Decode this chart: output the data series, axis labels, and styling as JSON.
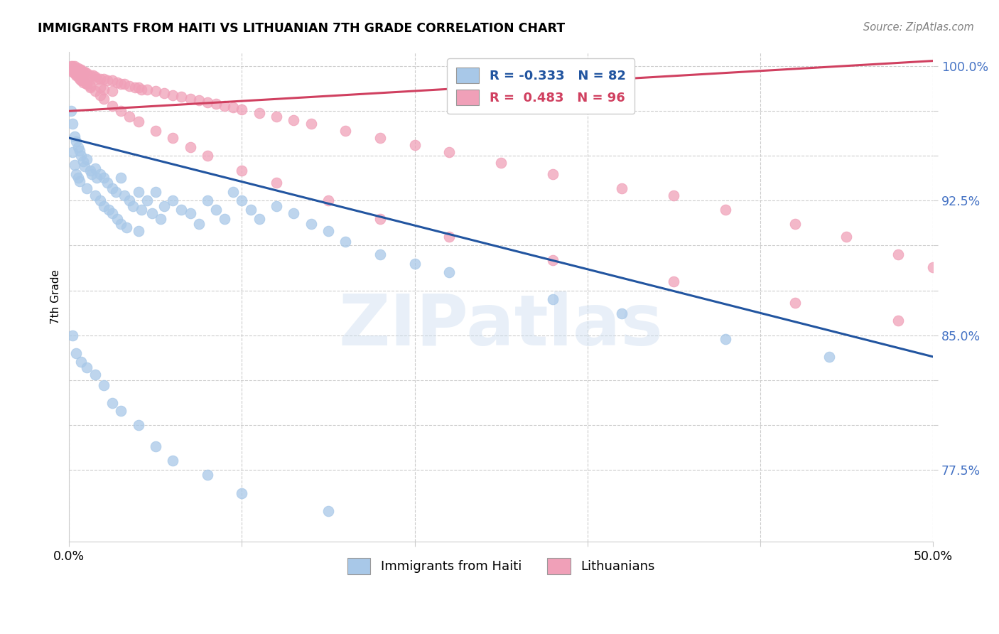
{
  "title": "IMMIGRANTS FROM HAITI VS LITHUANIAN 7TH GRADE CORRELATION CHART",
  "source": "Source: ZipAtlas.com",
  "ylabel": "7th Grade",
  "xlim": [
    0.0,
    0.5
  ],
  "ylim": [
    0.735,
    1.008
  ],
  "blue_color": "#a8c8e8",
  "pink_color": "#f0a0b8",
  "blue_line_color": "#2255a0",
  "pink_line_color": "#d04060",
  "legend_blue_R": "-0.333",
  "legend_blue_N": "82",
  "legend_pink_R": "0.483",
  "legend_pink_N": "96",
  "legend_label_blue": "Immigrants from Haiti",
  "legend_label_pink": "Lithuanians",
  "watermark": "ZIPatlas",
  "blue_scatter_x": [
    0.001,
    0.002,
    0.002,
    0.003,
    0.003,
    0.004,
    0.004,
    0.005,
    0.005,
    0.006,
    0.006,
    0.007,
    0.008,
    0.009,
    0.01,
    0.01,
    0.012,
    0.013,
    0.015,
    0.015,
    0.016,
    0.018,
    0.018,
    0.02,
    0.02,
    0.022,
    0.023,
    0.025,
    0.025,
    0.027,
    0.028,
    0.03,
    0.03,
    0.032,
    0.033,
    0.035,
    0.037,
    0.04,
    0.04,
    0.042,
    0.045,
    0.048,
    0.05,
    0.053,
    0.055,
    0.06,
    0.065,
    0.07,
    0.075,
    0.08,
    0.085,
    0.09,
    0.095,
    0.1,
    0.105,
    0.11,
    0.12,
    0.13,
    0.14,
    0.15,
    0.16,
    0.18,
    0.2,
    0.22,
    0.28,
    0.32,
    0.38,
    0.44,
    0.002,
    0.004,
    0.007,
    0.01,
    0.015,
    0.02,
    0.025,
    0.03,
    0.04,
    0.05,
    0.06,
    0.08,
    0.1,
    0.15
  ],
  "blue_scatter_y": [
    0.975,
    0.968,
    0.952,
    0.961,
    0.945,
    0.958,
    0.94,
    0.955,
    0.938,
    0.953,
    0.936,
    0.95,
    0.947,
    0.944,
    0.948,
    0.932,
    0.942,
    0.94,
    0.943,
    0.928,
    0.938,
    0.94,
    0.925,
    0.938,
    0.922,
    0.935,
    0.92,
    0.932,
    0.918,
    0.93,
    0.915,
    0.938,
    0.912,
    0.928,
    0.91,
    0.925,
    0.922,
    0.93,
    0.908,
    0.92,
    0.925,
    0.918,
    0.93,
    0.915,
    0.922,
    0.925,
    0.92,
    0.918,
    0.912,
    0.925,
    0.92,
    0.915,
    0.93,
    0.925,
    0.92,
    0.915,
    0.922,
    0.918,
    0.912,
    0.908,
    0.902,
    0.895,
    0.89,
    0.885,
    0.87,
    0.862,
    0.848,
    0.838,
    0.85,
    0.84,
    0.835,
    0.832,
    0.828,
    0.822,
    0.812,
    0.808,
    0.8,
    0.788,
    0.78,
    0.772,
    0.762,
    0.752
  ],
  "pink_scatter_x": [
    0.001,
    0.001,
    0.002,
    0.002,
    0.003,
    0.003,
    0.004,
    0.004,
    0.005,
    0.005,
    0.006,
    0.006,
    0.007,
    0.007,
    0.008,
    0.008,
    0.009,
    0.01,
    0.01,
    0.012,
    0.012,
    0.014,
    0.015,
    0.016,
    0.018,
    0.018,
    0.02,
    0.02,
    0.022,
    0.025,
    0.025,
    0.028,
    0.03,
    0.032,
    0.035,
    0.038,
    0.04,
    0.042,
    0.045,
    0.05,
    0.055,
    0.06,
    0.065,
    0.07,
    0.075,
    0.08,
    0.085,
    0.09,
    0.095,
    0.1,
    0.11,
    0.12,
    0.13,
    0.14,
    0.16,
    0.18,
    0.2,
    0.22,
    0.25,
    0.28,
    0.32,
    0.35,
    0.38,
    0.42,
    0.45,
    0.48,
    0.5,
    0.002,
    0.004,
    0.006,
    0.008,
    0.01,
    0.012,
    0.015,
    0.018,
    0.02,
    0.025,
    0.03,
    0.035,
    0.04,
    0.05,
    0.06,
    0.07,
    0.08,
    0.1,
    0.12,
    0.15,
    0.18,
    0.22,
    0.28,
    0.35,
    0.42,
    0.48
  ],
  "pink_scatter_y": [
    1.0,
    0.998,
    1.0,
    0.997,
    1.0,
    0.996,
    0.999,
    0.995,
    0.999,
    0.994,
    0.998,
    0.993,
    0.998,
    0.992,
    0.997,
    0.991,
    0.997,
    0.996,
    0.99,
    0.995,
    0.989,
    0.995,
    0.994,
    0.993,
    0.993,
    0.988,
    0.993,
    0.987,
    0.992,
    0.992,
    0.986,
    0.991,
    0.99,
    0.99,
    0.989,
    0.988,
    0.988,
    0.987,
    0.987,
    0.986,
    0.985,
    0.984,
    0.983,
    0.982,
    0.981,
    0.98,
    0.979,
    0.978,
    0.977,
    0.976,
    0.974,
    0.972,
    0.97,
    0.968,
    0.964,
    0.96,
    0.956,
    0.952,
    0.946,
    0.94,
    0.932,
    0.928,
    0.92,
    0.912,
    0.905,
    0.895,
    0.888,
    0.998,
    0.996,
    0.994,
    0.992,
    0.99,
    0.988,
    0.986,
    0.984,
    0.982,
    0.978,
    0.975,
    0.972,
    0.969,
    0.964,
    0.96,
    0.955,
    0.95,
    0.942,
    0.935,
    0.925,
    0.915,
    0.905,
    0.892,
    0.88,
    0.868,
    0.858
  ],
  "blue_trend_x": [
    0.0,
    0.5
  ],
  "blue_trend_y": [
    0.96,
    0.838
  ],
  "pink_trend_x": [
    0.0,
    0.5
  ],
  "pink_trend_y": [
    0.975,
    1.003
  ],
  "ytick_vals": [
    0.775,
    0.8,
    0.825,
    0.85,
    0.875,
    0.9,
    0.925,
    0.95,
    0.975,
    1.0
  ],
  "ytick_lbls": [
    "77.5%",
    "",
    "",
    "85.0%",
    "",
    "",
    "92.5%",
    "",
    "",
    "100.0%"
  ],
  "xtick_vals": [
    0.0,
    0.1,
    0.2,
    0.3,
    0.4,
    0.5
  ],
  "xtick_lbls": [
    "0.0%",
    "",
    "",
    "",
    "",
    "50.0%"
  ],
  "grid_color": "#cccccc",
  "bg_color": "#ffffff",
  "tick_color": "#4472c4"
}
